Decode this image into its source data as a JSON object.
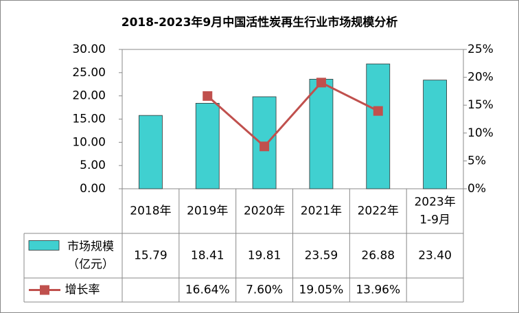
{
  "chart_data": {
    "type": "bar",
    "title": "2018-2023年9月中国活性炭再生行业市场规模分析",
    "categories": [
      "2018年",
      "2019年",
      "2020年",
      "2021年",
      "2022年",
      "2023年\n1-9月"
    ],
    "series": [
      {
        "name": "市场规模\n（亿元）",
        "type": "bar",
        "color": "#40d0d0",
        "values": [
          15.79,
          18.41,
          19.81,
          23.59,
          26.88,
          23.4
        ],
        "value_labels": [
          "15.79",
          "18.41",
          "19.81",
          "23.59",
          "26.88",
          "23.40"
        ]
      },
      {
        "name": "增长率",
        "type": "line",
        "axis": "y2",
        "color": "#c0504d",
        "values": [
          null,
          16.64,
          7.6,
          19.05,
          13.96,
          null
        ],
        "value_labels": [
          null,
          "16.64%",
          "7.60%",
          "19.05%",
          "13.96%",
          null
        ]
      }
    ],
    "ylim": [
      0,
      30
    ],
    "yticks": [
      {
        "value": 0,
        "label": "0.00"
      },
      {
        "value": 5,
        "label": "5.00"
      },
      {
        "value": 10,
        "label": "10.00"
      },
      {
        "value": 15,
        "label": "15.00"
      },
      {
        "value": 20,
        "label": "20.00"
      },
      {
        "value": 25,
        "label": "25.00"
      },
      {
        "value": 30,
        "label": "30.00"
      }
    ],
    "y2lim": [
      0,
      25
    ],
    "y2ticks": [
      {
        "value": 0,
        "label": "0%"
      },
      {
        "value": 5,
        "label": "5%"
      },
      {
        "value": 10,
        "label": "10%"
      },
      {
        "value": 15,
        "label": "15%"
      },
      {
        "value": 20,
        "label": "20%"
      },
      {
        "value": 25,
        "label": "25%"
      }
    ],
    "grid": false,
    "data_table": true
  }
}
